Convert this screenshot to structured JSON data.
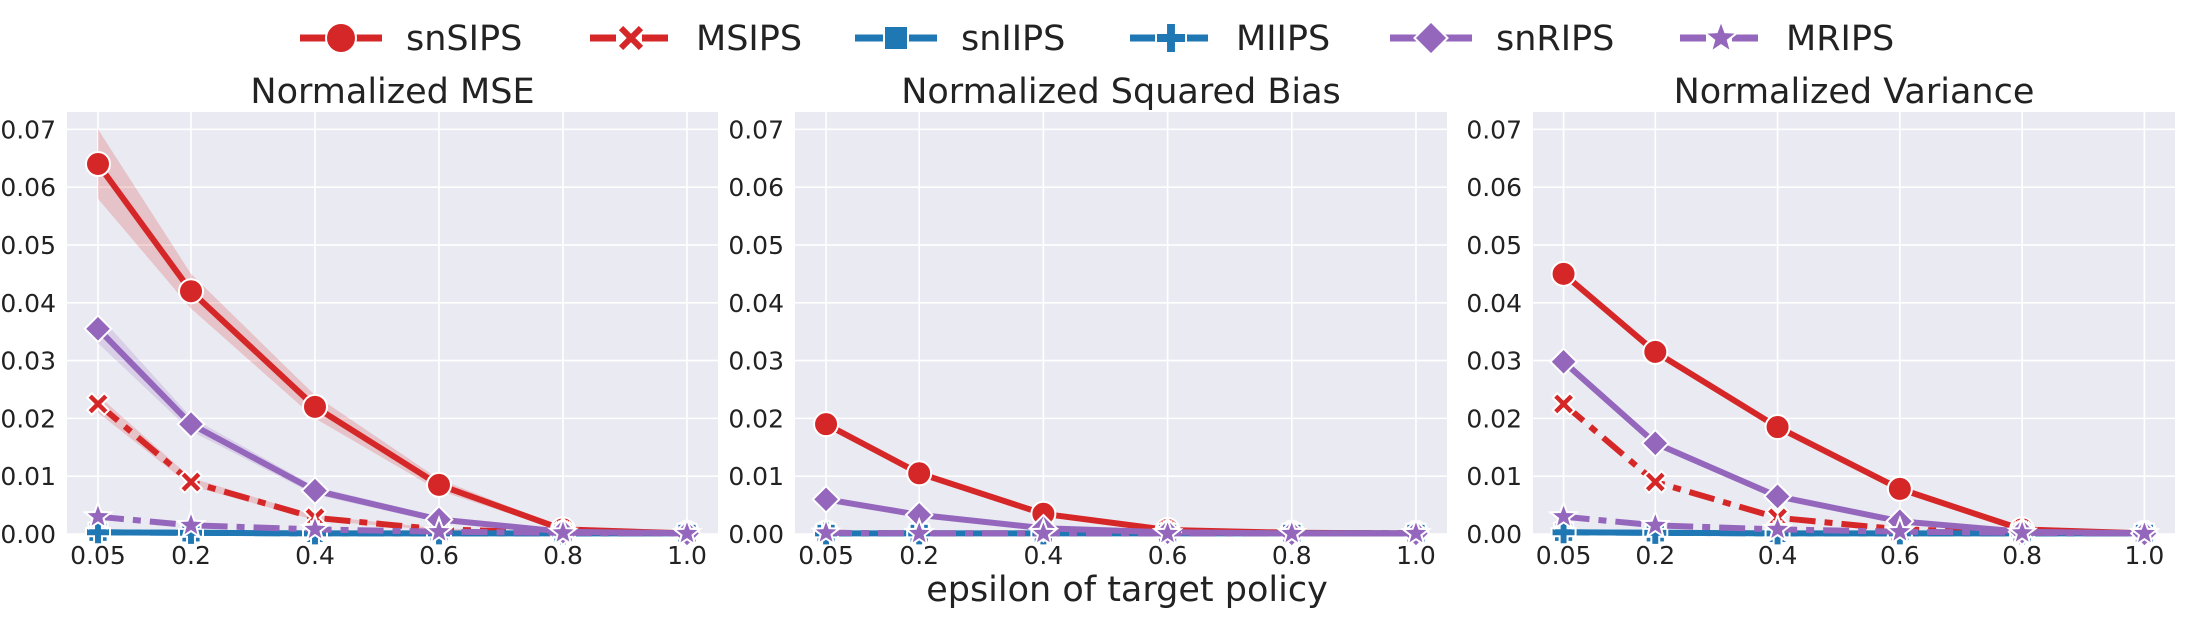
{
  "legend": {
    "placement": "top-center",
    "entries": [
      {
        "label": "snSIPS",
        "color": "#d62728",
        "marker": "circle",
        "dashed": false
      },
      {
        "label": "MSIPS",
        "color": "#d62728",
        "marker": "x",
        "dashed": true
      },
      {
        "label": "snIIPS",
        "color": "#1f77b4",
        "marker": "square",
        "dashed": false
      },
      {
        "label": "MIIPS",
        "color": "#1f77b4",
        "marker": "plus",
        "dashed": true
      },
      {
        "label": "snRIPS",
        "color": "#9467bd",
        "marker": "diamond",
        "dashed": false
      },
      {
        "label": "MRIPS",
        "color": "#9467bd",
        "marker": "star",
        "dashed": true
      }
    ]
  },
  "xlabel": "epsilon of target policy",
  "chart_data": [
    {
      "type": "line",
      "title": "Normalized MSE",
      "x": [
        0.05,
        0.2,
        0.4,
        0.6,
        0.8,
        1.0
      ],
      "xticks": [
        "0.05",
        "0.2",
        "0.4",
        "0.6",
        "0.8",
        "1.0"
      ],
      "ylim": [
        0,
        0.073
      ],
      "yticks": [
        "0.00",
        "0.01",
        "0.02",
        "0.03",
        "0.04",
        "0.05",
        "0.06",
        "0.07"
      ],
      "grid": true,
      "series": [
        {
          "name": "snSIPS",
          "values": [
            0.064,
            0.042,
            0.022,
            0.0085,
            0.0008,
            0.0001
          ],
          "band": [
            [
              0.058,
              0.07
            ],
            [
              0.039,
              0.045
            ],
            [
              0.02,
              0.024
            ],
            [
              0.0075,
              0.0095
            ],
            [
              0.0005,
              0.0011
            ],
            [
              0.0,
              0.0002
            ]
          ]
        },
        {
          "name": "MSIPS",
          "values": [
            0.0225,
            0.009,
            0.0028,
            0.0008,
            0.0002,
            0.0001
          ],
          "band": [
            [
              0.021,
              0.024
            ],
            [
              0.0083,
              0.0097
            ],
            [
              0.0024,
              0.0032
            ],
            [
              0.0006,
              0.001
            ],
            [
              0.0001,
              0.0003
            ],
            [
              0.0,
              0.0002
            ]
          ]
        },
        {
          "name": "snIIPS",
          "values": [
            0.0003,
            0.0002,
            0.0001,
            0.0001,
            0.0001,
            0.0001
          ]
        },
        {
          "name": "MIIPS",
          "values": [
            0.0003,
            0.0002,
            0.0001,
            0.0001,
            0.0001,
            0.0001
          ]
        },
        {
          "name": "snRIPS",
          "values": [
            0.0355,
            0.019,
            0.0075,
            0.0025,
            0.0004,
            0.0001
          ],
          "band": [
            [
              0.033,
              0.038
            ],
            [
              0.0178,
              0.0202
            ],
            [
              0.0068,
              0.0082
            ],
            [
              0.002,
              0.003
            ],
            [
              0.0002,
              0.0006
            ],
            [
              0.0,
              0.0002
            ]
          ]
        },
        {
          "name": "MRIPS",
          "values": [
            0.003,
            0.0015,
            0.0008,
            0.0004,
            0.0002,
            0.0001
          ]
        }
      ]
    },
    {
      "type": "line",
      "title": "Normalized Squared Bias",
      "x": [
        0.05,
        0.2,
        0.4,
        0.6,
        0.8,
        1.0
      ],
      "xticks": [
        "0.05",
        "0.2",
        "0.4",
        "0.6",
        "0.8",
        "1.0"
      ],
      "ylim": [
        0,
        0.073
      ],
      "yticks": [
        "0.00",
        "0.01",
        "0.02",
        "0.03",
        "0.04",
        "0.05",
        "0.06",
        "0.07"
      ],
      "grid": true,
      "series": [
        {
          "name": "snSIPS",
          "values": [
            0.019,
            0.0105,
            0.0035,
            0.0007,
            0.0002,
            0.0001
          ]
        },
        {
          "name": "MSIPS",
          "values": [
            0.0002,
            0.0001,
            0.0001,
            0.0001,
            0.0001,
            0.0001
          ]
        },
        {
          "name": "snIIPS",
          "values": [
            0.0001,
            0.0001,
            0.0001,
            0.0001,
            0.0001,
            0.0001
          ]
        },
        {
          "name": "MIIPS",
          "values": [
            0.0001,
            0.0001,
            0.0001,
            0.0001,
            0.0001,
            0.0001
          ]
        },
        {
          "name": "snRIPS",
          "values": [
            0.006,
            0.0033,
            0.001,
            0.0003,
            0.0001,
            0.0001
          ]
        },
        {
          "name": "MRIPS",
          "values": [
            0.0002,
            0.0001,
            0.0001,
            0.0001,
            0.0001,
            0.0001
          ]
        }
      ]
    },
    {
      "type": "line",
      "title": "Normalized Variance",
      "x": [
        0.05,
        0.2,
        0.4,
        0.6,
        0.8,
        1.0
      ],
      "xticks": [
        "0.05",
        "0.2",
        "0.4",
        "0.6",
        "0.8",
        "1.0"
      ],
      "ylim": [
        0,
        0.073
      ],
      "yticks": [
        "0.00",
        "0.01",
        "0.02",
        "0.03",
        "0.04",
        "0.05",
        "0.06",
        "0.07"
      ],
      "grid": true,
      "series": [
        {
          "name": "snSIPS",
          "values": [
            0.045,
            0.0315,
            0.0185,
            0.0078,
            0.0008,
            0.0001
          ]
        },
        {
          "name": "MSIPS",
          "values": [
            0.0225,
            0.009,
            0.0028,
            0.0008,
            0.0002,
            0.0001
          ]
        },
        {
          "name": "snIIPS",
          "values": [
            0.0003,
            0.0002,
            0.0001,
            0.0001,
            0.0001,
            0.0001
          ]
        },
        {
          "name": "MIIPS",
          "values": [
            0.0003,
            0.0002,
            0.0001,
            0.0001,
            0.0001,
            0.0001
          ]
        },
        {
          "name": "snRIPS",
          "values": [
            0.0298,
            0.0157,
            0.0065,
            0.0022,
            0.0004,
            0.0001
          ]
        },
        {
          "name": "MRIPS",
          "values": [
            0.003,
            0.0015,
            0.0008,
            0.0004,
            0.0002,
            0.0001
          ]
        }
      ]
    }
  ]
}
